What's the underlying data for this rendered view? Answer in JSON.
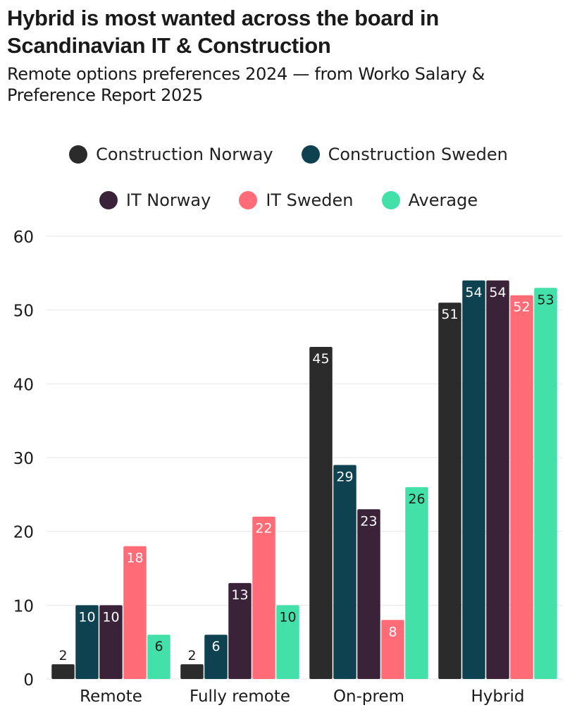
{
  "title": "Hybrid is most wanted across the board in Scandinavian IT & Construction",
  "subtitle": "Remote options preferences 2024 — from Worko Salary & Preference Report 2025",
  "chart_data": {
    "type": "bar",
    "title": "Hybrid is most wanted across the board in Scandinavian IT & Construction",
    "subtitle": "Remote options preferences 2024 — from Worko Salary & Preference Report 2025",
    "categories": [
      "Remote",
      "Fully remote",
      "On-prem",
      "Hybrid"
    ],
    "series": [
      {
        "name": "Construction Norway",
        "color": "#2b2b2b",
        "label_color": "#ffffff",
        "values": [
          2,
          2,
          45,
          51
        ]
      },
      {
        "name": "Construction Sweden",
        "color": "#0f4250",
        "label_color": "#ffffff",
        "values": [
          10,
          6,
          29,
          54
        ]
      },
      {
        "name": "IT Norway",
        "color": "#3a2338",
        "label_color": "#ffffff",
        "values": [
          10,
          13,
          23,
          54
        ]
      },
      {
        "name": "IT Sweden",
        "color": "#ff6b76",
        "label_color": "#ffffff",
        "values": [
          18,
          22,
          8,
          52
        ]
      },
      {
        "name": "Average",
        "color": "#44e0a9",
        "label_color": "#1a1a1a",
        "values": [
          6,
          10,
          26,
          53
        ]
      }
    ],
    "ylim": [
      0,
      60
    ],
    "yticks": [
      0,
      10,
      20,
      30,
      40,
      50,
      60
    ],
    "grid": true,
    "legend": "top"
  }
}
